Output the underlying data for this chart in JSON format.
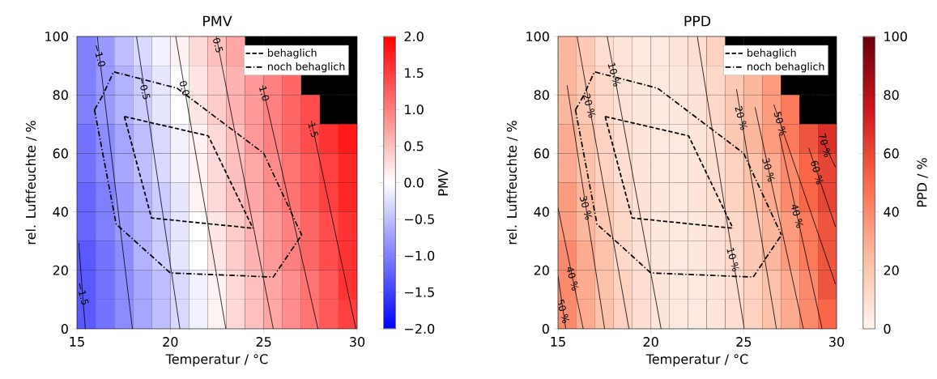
{
  "chart_data": [
    {
      "type": "heatmap",
      "title": "PMV",
      "xlabel": "Temperatur / °C",
      "ylabel": "rel. Luftfeuchte / %",
      "clabel": "PMV",
      "x": [
        15.5,
        16.5,
        17.5,
        18.5,
        19.5,
        20.5,
        21.5,
        22.5,
        23.5,
        24.5,
        25.5,
        26.5,
        27.5,
        28.5,
        29.5
      ],
      "y": [
        95,
        85,
        75,
        65,
        55,
        45,
        35,
        25,
        15,
        5
      ],
      "cells": [
        [
          -1.0,
          -0.8,
          -0.5,
          -0.3,
          -0.1,
          0.1,
          0.3,
          0.5,
          0.7,
          null,
          null,
          null,
          null,
          null,
          null
        ],
        [
          -1.0,
          -0.8,
          -0.6,
          -0.4,
          -0.2,
          0.0,
          0.2,
          0.4,
          0.6,
          0.8,
          1.0,
          1.2,
          null,
          null,
          null
        ],
        [
          -1.0,
          -0.8,
          -0.6,
          -0.4,
          -0.2,
          0.0,
          0.2,
          0.4,
          0.6,
          0.8,
          1.0,
          1.2,
          1.4,
          null,
          null
        ],
        [
          -1.1,
          -0.9,
          -0.7,
          -0.5,
          -0.3,
          -0.1,
          0.1,
          0.3,
          0.5,
          0.8,
          1.0,
          1.2,
          1.4,
          1.6,
          1.8
        ],
        [
          -1.1,
          -0.9,
          -0.7,
          -0.5,
          -0.3,
          -0.1,
          0.1,
          0.3,
          0.5,
          0.7,
          0.9,
          1.1,
          1.3,
          1.5,
          1.7
        ],
        [
          -1.2,
          -1.0,
          -0.8,
          -0.6,
          -0.4,
          -0.2,
          0.1,
          0.3,
          0.5,
          0.7,
          0.9,
          1.1,
          1.3,
          1.5,
          1.7
        ],
        [
          -1.2,
          -1.0,
          -0.8,
          -0.6,
          -0.4,
          -0.2,
          0.0,
          0.2,
          0.4,
          0.6,
          0.8,
          1.0,
          1.2,
          1.4,
          1.6
        ],
        [
          -1.3,
          -1.1,
          -0.9,
          -0.6,
          -0.4,
          -0.2,
          0.0,
          0.2,
          0.4,
          0.6,
          0.8,
          1.0,
          1.2,
          1.4,
          1.6
        ],
        [
          -1.3,
          -1.1,
          -0.9,
          -0.7,
          -0.5,
          -0.3,
          -0.1,
          0.1,
          0.3,
          0.5,
          0.7,
          0.9,
          1.1,
          1.3,
          1.6
        ],
        [
          -1.3,
          -1.1,
          -0.9,
          -0.7,
          -0.5,
          -0.3,
          -0.1,
          0.1,
          0.3,
          0.5,
          0.7,
          0.9,
          1.1,
          1.3,
          1.5
        ]
      ],
      "colors": [
        "#0000ff",
        "#ffffff",
        "#ff0000"
      ],
      "clim": [
        -2,
        2
      ],
      "cticks": [
        {
          "value": -2,
          "label": "−2.0"
        },
        {
          "value": -1.5,
          "label": "−1.5"
        },
        {
          "value": -1,
          "label": "−1.0"
        },
        {
          "value": -0.5,
          "label": "−0.5"
        },
        {
          "value": 0,
          "label": "0.0"
        },
        {
          "value": 0.5,
          "label": "0.5"
        },
        {
          "value": 1,
          "label": "1.0"
        },
        {
          "value": 1.5,
          "label": "1.5"
        },
        {
          "value": 2,
          "label": "2.0"
        }
      ],
      "xlim": [
        15,
        30
      ],
      "ylim": [
        0,
        100
      ],
      "xticks": [
        15,
        20,
        25,
        30
      ],
      "yticks": [
        0,
        20,
        40,
        60,
        80,
        100
      ],
      "grid": true,
      "legend": "top right",
      "series": [
        {
          "type": "line",
          "color": "#000000",
          "x": [
            15.1,
            15.3,
            15.45
          ],
          "values": [
            29.3,
            12.0,
            0
          ]
        },
        {
          "type": "line",
          "color": "#000000",
          "x": [
            16.09,
            16.2,
            17.97
          ],
          "values": [
            100,
            93.5,
            0
          ]
        },
        {
          "type": "line",
          "color": "#000000",
          "x": [
            18.19,
            18.6,
            20.51
          ],
          "values": [
            100,
            82.3,
            0
          ]
        },
        {
          "type": "line",
          "color": "#000000",
          "x": [
            20.29,
            20.76,
            22.97
          ],
          "values": [
            100,
            82.3,
            0
          ]
        },
        {
          "type": "line",
          "color": "#000000",
          "x": [
            22.46,
            22.55,
            25.51
          ],
          "values": [
            100,
            97.0,
            0
          ]
        },
        {
          "type": "line",
          "color": "#000000",
          "x": [
            24.93,
            25.03,
            27.9
          ],
          "values": [
            83.3,
            80.5,
            0
          ]
        },
        {
          "type": "line",
          "color": "#000000",
          "x": [
            27.54,
            27.65,
            29.93
          ],
          "values": [
            71.2,
            68.0,
            0
          ]
        },
        {
          "type": "line",
          "name": "behaglich",
          "color": "#000000",
          "line_style": "dashed",
          "x": [
            17.54,
            22.03,
            24.42
          ],
          "values": [
            72.6,
            66.0,
            34.4
          ]
        },
        {
          "type": "line",
          "color": "#000000",
          "line_style": "dashed",
          "x": [
            17.54,
            18.99,
            24.42
          ],
          "values": [
            72.6,
            37.9,
            34.4
          ]
        },
        {
          "type": "line",
          "name": "noch behaglich",
          "color": "#000000",
          "line_style": "dashdot",
          "x": [
            15.94,
            16.38,
            16.96,
            20.36,
            25.0,
            27.03
          ],
          "values": [
            74.9,
            79.8,
            87.9,
            82.3,
            60.0,
            32.1
          ]
        },
        {
          "type": "line",
          "color": "#000000",
          "line_style": "dashdot",
          "x": [
            15.94,
            17.1,
            20.0,
            25.51,
            27.03
          ],
          "values": [
            74.9,
            35.8,
            19.1,
            17.7,
            32.1
          ]
        }
      ],
      "annotations": [
        {
          "text": "−1.5",
          "x": 15.3,
          "y": 12.0
        },
        {
          "text": "−1.0",
          "x": 16.2,
          "y": 93.5
        },
        {
          "text": "−0.5",
          "x": 18.6,
          "y": 82.3
        },
        {
          "text": "0.0",
          "x": 20.76,
          "y": 82.3
        },
        {
          "text": "0.5",
          "x": 22.55,
          "y": 97.0
        },
        {
          "text": "1.0",
          "x": 25.03,
          "y": 80.5
        },
        {
          "text": "1.5",
          "x": 27.65,
          "y": 68.0
        }
      ]
    },
    {
      "type": "heatmap",
      "title": "PPD",
      "xlabel": "Temperatur / °C",
      "ylabel": "rel. Luftfeuchte / %",
      "clabel": "PPD / %",
      "x": [
        15.5,
        16.5,
        17.5,
        18.5,
        19.5,
        20.5,
        21.5,
        22.5,
        23.5,
        24.5,
        25.5,
        26.5,
        27.5,
        28.5,
        29.5
      ],
      "y": [
        95,
        85,
        75,
        65,
        55,
        45,
        35,
        25,
        15,
        5
      ],
      "cells": [
        [
          26,
          19,
          10,
          7,
          5,
          5,
          7,
          10,
          15,
          null,
          null,
          null,
          null,
          null,
          null
        ],
        [
          26,
          19,
          12,
          8,
          6,
          5,
          6,
          8,
          12,
          19,
          26,
          35,
          null,
          null,
          null
        ],
        [
          26,
          19,
          12,
          8,
          6,
          5,
          6,
          8,
          12,
          19,
          26,
          35,
          45,
          null,
          null
        ],
        [
          30,
          22,
          15,
          10,
          7,
          5,
          5,
          7,
          10,
          19,
          26,
          35,
          45,
          56,
          67
        ],
        [
          30,
          22,
          15,
          10,
          7,
          5,
          5,
          7,
          10,
          15,
          22,
          30,
          40,
          51,
          61
        ],
        [
          35,
          26,
          19,
          12,
          8,
          6,
          5,
          7,
          10,
          15,
          22,
          30,
          40,
          51,
          61
        ],
        [
          35,
          26,
          19,
          12,
          8,
          6,
          5,
          6,
          8,
          12,
          19,
          26,
          35,
          45,
          56
        ],
        [
          40,
          30,
          22,
          12,
          8,
          6,
          5,
          6,
          8,
          12,
          19,
          26,
          35,
          45,
          56
        ],
        [
          40,
          30,
          22,
          15,
          10,
          7,
          5,
          5,
          7,
          10,
          15,
          22,
          30,
          40,
          56
        ],
        [
          40,
          30,
          22,
          15,
          10,
          7,
          5,
          5,
          7,
          10,
          15,
          22,
          30,
          40,
          51
        ]
      ],
      "colors": [
        "#fff5f0",
        "#fcbba1",
        "#fb6a4a",
        "#cb181d",
        "#67000d"
      ],
      "clim": [
        0,
        100
      ],
      "cticks": [
        0,
        20,
        40,
        60,
        80,
        100
      ],
      "xlim": [
        15,
        30
      ],
      "ylim": [
        0,
        100
      ],
      "xticks": [
        15,
        20,
        25,
        30
      ],
      "yticks": [
        0,
        20,
        40,
        60,
        80,
        100
      ],
      "grid": true,
      "legend": "top right",
      "series": [
        {
          "type": "line",
          "color": "#000000",
          "x": [
            15.0,
            15.28,
            15.42
          ],
          "values": [
            18.1,
            6.0,
            0
          ]
        },
        {
          "type": "line",
          "color": "#000000",
          "x": [
            15.0,
            15.79,
            16.36
          ],
          "values": [
            41.4,
            17.2,
            0
          ]
        },
        {
          "type": "line",
          "color": "#000000",
          "x": [
            15.49,
            16.51,
            17.51
          ],
          "values": [
            83.3,
            41.4,
            0
          ]
        },
        {
          "type": "line",
          "color": "#000000",
          "x": [
            16.03,
            16.69,
            18.82
          ],
          "values": [
            100,
            76.3,
            0
          ]
        },
        {
          "type": "line",
          "color": "#000000",
          "x": [
            17.65,
            18.03,
            20.55
          ],
          "values": [
            100,
            87.0,
            0
          ]
        },
        {
          "type": "line",
          "color": "#000000",
          "x": [
            22.5,
            24.43,
            25.03
          ],
          "values": [
            100,
            23.7,
            0
          ]
        },
        {
          "type": "line",
          "color": "#000000",
          "x": [
            24.61,
            24.87,
            26.76
          ],
          "values": [
            82,
            72.1,
            0
          ]
        },
        {
          "type": "line",
          "color": "#000000",
          "x": [
            25.61,
            26.34,
            28.21
          ],
          "values": [
            75.8,
            54.4,
            0
          ]
        },
        {
          "type": "line",
          "color": "#000000",
          "x": [
            26.91,
            27.88,
            29.22
          ],
          "values": [
            66.5,
            38.6,
            0
          ]
        },
        {
          "type": "line",
          "color": "#000000",
          "x": [
            26.62,
            26.97,
            29.94
          ],
          "values": [
            76.7,
            70.2,
            15.3
          ]
        },
        {
          "type": "line",
          "color": "#000000",
          "x": [
            28.5,
            28.95,
            29.94
          ],
          "values": [
            61.9,
            53.5,
            34.9
          ]
        },
        {
          "type": "line",
          "color": "#000000",
          "x": [
            29.22,
            29.37,
            29.94
          ],
          "values": [
            64.7,
            62.8,
            55.3
          ]
        },
        {
          "type": "line",
          "name": "behaglich",
          "color": "#000000",
          "line_style": "dashed",
          "x": [
            17.54,
            22.03,
            24.42
          ],
          "values": [
            72.6,
            66.0,
            34.4
          ]
        },
        {
          "type": "line",
          "color": "#000000",
          "line_style": "dashed",
          "x": [
            17.54,
            18.99,
            24.42
          ],
          "values": [
            72.6,
            37.9,
            34.4
          ]
        },
        {
          "type": "line",
          "name": "noch behaglich",
          "color": "#000000",
          "line_style": "dashdot",
          "x": [
            15.94,
            16.38,
            16.96,
            20.36,
            25.0,
            27.03
          ],
          "values": [
            74.9,
            79.8,
            87.9,
            82.3,
            60.0,
            32.1
          ]
        },
        {
          "type": "line",
          "color": "#000000",
          "line_style": "dashdot",
          "x": [
            15.94,
            17.1,
            20.0,
            25.51,
            27.03
          ],
          "values": [
            74.9,
            35.8,
            19.1,
            17.7,
            32.1
          ]
        }
      ],
      "annotations": [
        {
          "text": "10 %",
          "x": 18.03,
          "y": 87.0
        },
        {
          "text": "20 %",
          "x": 16.69,
          "y": 76.3
        },
        {
          "text": "30 %",
          "x": 16.51,
          "y": 41.4
        },
        {
          "text": "40 %",
          "x": 15.79,
          "y": 17.2
        },
        {
          "text": "50 %",
          "x": 15.28,
          "y": 6.0
        },
        {
          "text": "10 %",
          "x": 24.43,
          "y": 23.7
        },
        {
          "text": "20 %",
          "x": 24.87,
          "y": 72.1
        },
        {
          "text": "30 %",
          "x": 26.34,
          "y": 54.4
        },
        {
          "text": "40 %",
          "x": 27.88,
          "y": 38.6
        },
        {
          "text": "50 %",
          "x": 26.97,
          "y": 70.2
        },
        {
          "text": "60 %",
          "x": 28.95,
          "y": 53.5
        },
        {
          "text": "70 %",
          "x": 29.37,
          "y": 62.8
        }
      ]
    }
  ]
}
